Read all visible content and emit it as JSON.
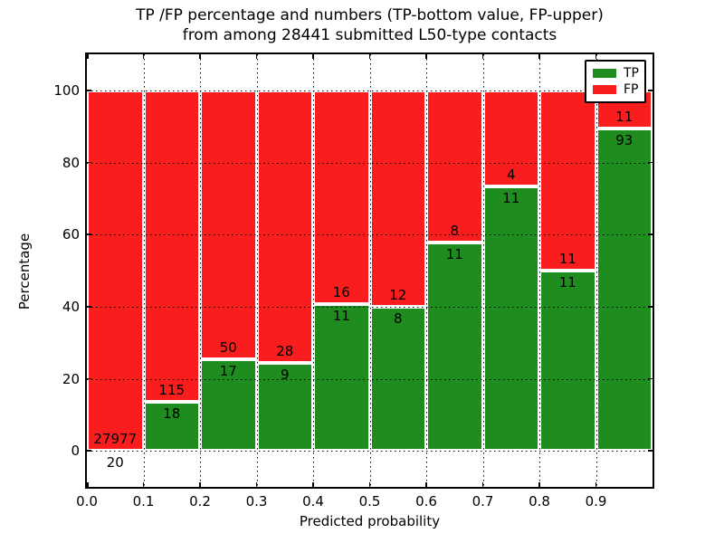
{
  "chart_data": {
    "type": "bar",
    "variant": "stacked-percentage-histogram",
    "title_line1": "TP /FP percentage and numbers (TP-bottom value, FP-upper)",
    "title_line2": "from among 28441 submitted L50-type contacts",
    "xlabel": "Predicted probability",
    "ylabel": "Percentage",
    "total_contacts_shown_in_title": 28441,
    "xlim": [
      0.0,
      1.0
    ],
    "ylim": [
      -10,
      110
    ],
    "bar_width": 0.1,
    "bin_left_edges": [
      0.0,
      0.1,
      0.2,
      0.3,
      0.4,
      0.5,
      0.6,
      0.7,
      0.8,
      0.9
    ],
    "x_tick_values": [
      0.0,
      0.1,
      0.2,
      0.3,
      0.4,
      0.5,
      0.6,
      0.7,
      0.8,
      0.9
    ],
    "x_tick_labels": [
      "0.0",
      "0.1",
      "0.2",
      "0.3",
      "0.4",
      "0.5",
      "0.6",
      "0.7",
      "0.8",
      "0.9"
    ],
    "y_tick_values": [
      0,
      20,
      40,
      60,
      80,
      100
    ],
    "y_tick_labels": [
      "0",
      "20",
      "40",
      "60",
      "80",
      "100"
    ],
    "grid": "dotted-black-on",
    "legend_position": "upper-right",
    "series": [
      {
        "name": "TP",
        "color": "#1e8c1e",
        "stack_order": "bottom",
        "counts": [
          20,
          18,
          17,
          9,
          11,
          8,
          11,
          11,
          11,
          93
        ]
      },
      {
        "name": "FP",
        "color": "#f91d1d",
        "stack_order": "top",
        "counts": [
          27977,
          115,
          50,
          28,
          16,
          12,
          8,
          4,
          11,
          11
        ]
      }
    ],
    "tp_percent_of_bin": [
      0.07,
      13.53,
      25.37,
      24.32,
      40.74,
      40.0,
      57.89,
      73.33,
      50.0,
      89.42
    ]
  },
  "colors": {
    "tp_green": "#1e8c1e",
    "fp_red": "#f91d1d",
    "axes": "#000000",
    "background": "#ffffff",
    "bar_edge": "#ffffff"
  }
}
